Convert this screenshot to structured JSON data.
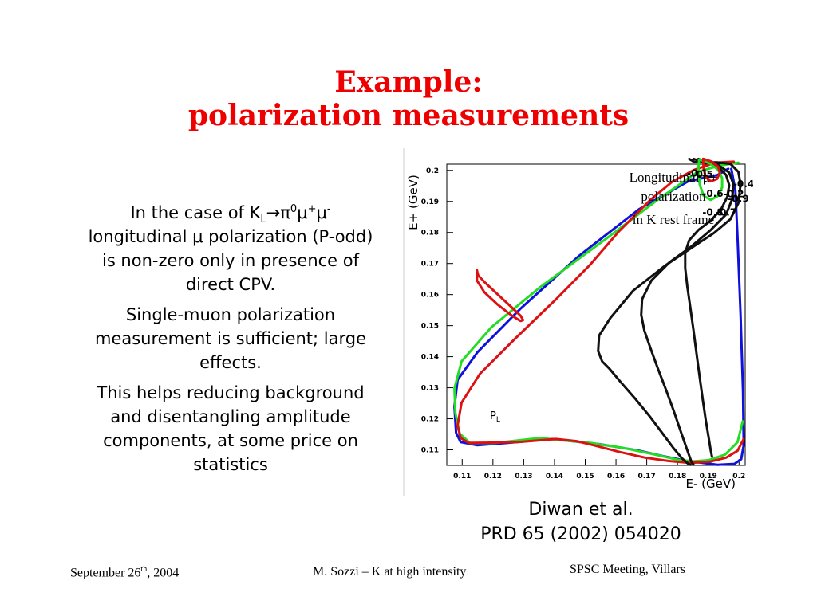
{
  "slide": {
    "title_line1": "Example:",
    "title_line2": "polarization measurements"
  },
  "body": {
    "p1_pre": "In the case of K",
    "p1_sub_L": "L",
    "p1_arrow_pi": "→π",
    "p1_sup_0": "0",
    "p1_mu1": "μ",
    "p1_sup_plus": "+",
    "p1_mu2": "μ",
    "p1_sup_minus": "-",
    "p1_rest": "longitudinal μ polarization (P-odd) is non-zero only in presence of direct CPV.",
    "p2": "Single-muon polarization measurement is sufficient; large effects.",
    "p3": "This helps reducing background and disentangling amplitude components, at some price on statistics"
  },
  "citation": {
    "line1": "Diwan et al.",
    "line2": "PRD 65 (2002) 054020"
  },
  "footer": {
    "date_pre": "September 26",
    "date_sup": "th",
    "date_post": ", 2004",
    "author": "M. Sozzi – K at high intensity",
    "meeting": "SPSC Meeting, Villars"
  },
  "chart_data": {
    "type": "contour",
    "title": "Longitudinal μ+ polarization in K rest frame",
    "annotation_lines": [
      "Longitudinal μ+",
      "polarization",
      "in K rest frame"
    ],
    "xlabel": "E- (GeV)",
    "ylabel": "E+ (GeV)",
    "inner_label_main": "P",
    "inner_label_sub": "L",
    "xlim": [
      0.105,
      0.202
    ],
    "ylim": [
      0.105,
      0.202
    ],
    "xticks": [
      0.11,
      0.12,
      0.13,
      0.14,
      0.15,
      0.16,
      0.17,
      0.18,
      0.19,
      0.2
    ],
    "xtick_labels": [
      "0.11",
      "0.12",
      "0.13",
      "0.14",
      "0.15",
      "0.16",
      "0.17",
      "0.18",
      "0.19",
      "0.2"
    ],
    "yticks": [
      0.11,
      0.12,
      0.13,
      0.14,
      0.15,
      0.16,
      0.17,
      0.18,
      0.19,
      0.2
    ],
    "ytick_labels": [
      "0.11",
      "0.12",
      "0.13",
      "0.14",
      "0.15",
      "0.16",
      "0.17",
      "0.18",
      "0.19",
      "0.2"
    ],
    "colors": {
      "blue": "#1010dd",
      "green": "#22dd22",
      "red": "#dd1111",
      "black": "#111111"
    },
    "contours": [
      {
        "label": "-0.1",
        "color": "blue",
        "label_at": [
          0.1865,
          0.198
        ],
        "points": [
          [
            0.1965,
            0.2005
          ],
          [
            0.193,
            0.1985
          ],
          [
            0.1835,
            0.1965
          ],
          [
            0.1675,
            0.1875
          ],
          [
            0.148,
            0.1725
          ],
          [
            0.129,
            0.1555
          ],
          [
            0.115,
            0.1415
          ],
          [
            0.1085,
            0.1325
          ],
          [
            0.1075,
            0.124
          ],
          [
            0.108,
            0.1155
          ],
          [
            0.1095,
            0.1125
          ],
          [
            0.1148,
            0.1115
          ],
          [
            0.1245,
            0.1122
          ],
          [
            0.1392,
            0.1135
          ],
          [
            0.1548,
            0.1118
          ],
          [
            0.1672,
            0.1098
          ],
          [
            0.1752,
            0.108
          ],
          [
            0.1832,
            0.1064
          ],
          [
            0.193,
            0.1052
          ],
          [
            0.1985,
            0.1055
          ],
          [
            0.2007,
            0.107
          ],
          [
            0.2015,
            0.1115
          ],
          [
            0.2013,
            0.1285
          ],
          [
            0.2005,
            0.1535
          ],
          [
            0.1995,
            0.1785
          ],
          [
            0.1988,
            0.1935
          ],
          [
            0.1975,
            0.2005
          ]
        ]
      },
      {
        "label": "-0.2",
        "color": "green",
        "label_at": [
          0.1982,
          0.1913
        ],
        "points": [
          [
            0.1998,
            0.2025
          ],
          [
            0.1935,
            0.2015
          ],
          [
            0.1865,
            0.1995
          ],
          [
            0.1735,
            0.1905
          ],
          [
            0.1575,
            0.1785
          ],
          [
            0.1355,
            0.1625
          ],
          [
            0.1195,
            0.1495
          ],
          [
            0.1098,
            0.1385
          ],
          [
            0.1075,
            0.1298
          ],
          [
            0.1078,
            0.1218
          ],
          [
            0.1092,
            0.1152
          ],
          [
            0.1125,
            0.1122
          ],
          [
            0.1205,
            0.1122
          ],
          [
            0.1352,
            0.1138
          ],
          [
            0.1518,
            0.1122
          ],
          [
            0.1625,
            0.1106
          ],
          [
            0.1722,
            0.1086
          ],
          [
            0.1802,
            0.1068
          ],
          [
            0.1852,
            0.1063
          ],
          [
            0.1902,
            0.1067
          ],
          [
            0.1955,
            0.1085
          ],
          [
            0.1995,
            0.1125
          ],
          [
            0.2012,
            0.1192
          ]
        ]
      },
      {
        "label": "-0.4",
        "color": "red",
        "label_at": [
          0.2015,
          0.1945
        ],
        "points": [
          [
            0.1983,
            0.2028
          ],
          [
            0.1922,
            0.2025
          ],
          [
            0.1855,
            0.2002
          ],
          [
            0.1785,
            0.1965
          ],
          [
            0.1712,
            0.1905
          ],
          [
            0.1608,
            0.1802
          ],
          [
            0.1515,
            0.1695
          ],
          [
            0.1405,
            0.1585
          ],
          [
            0.1272,
            0.1458
          ],
          [
            0.1158,
            0.1345
          ],
          [
            0.1098,
            0.1252
          ],
          [
            0.1085,
            0.1178
          ],
          [
            0.1095,
            0.1138
          ],
          [
            0.1122,
            0.1122
          ],
          [
            0.1175,
            0.1123
          ],
          [
            0.1282,
            0.1125
          ],
          [
            0.1405,
            0.1135
          ],
          [
            0.1472,
            0.1128
          ],
          [
            0.1538,
            0.1112
          ],
          [
            0.1612,
            0.1093
          ],
          [
            0.1695,
            0.1075
          ],
          [
            0.1772,
            0.1064
          ],
          [
            0.1842,
            0.1058
          ],
          [
            0.1905,
            0.1062
          ],
          [
            0.1958,
            0.1075
          ],
          [
            0.1995,
            0.1097
          ],
          [
            0.2015,
            0.1135
          ]
        ]
      },
      {
        "label": "-0.5",
        "color": "black",
        "label_at": [
          0.1882,
          0.1977
        ],
        "points": [
          [
            0.1838,
            0.2037
          ],
          [
            0.1855,
            0.2027
          ],
          [
            0.1928,
            0.2026
          ],
          [
            0.1972,
            0.2021
          ],
          [
            0.1998,
            0.1995
          ],
          [
            0.2005,
            0.1955
          ],
          [
            0.1998,
            0.1895
          ],
          [
            0.1972,
            0.1843
          ],
          [
            0.1918,
            0.1798
          ],
          [
            0.1848,
            0.1752
          ],
          [
            0.1758,
            0.1692
          ],
          [
            0.1655,
            0.1612
          ],
          [
            0.1582,
            0.1525
          ],
          [
            0.1545,
            0.1468
          ],
          [
            0.1542,
            0.1418
          ],
          [
            0.1555,
            0.1385
          ],
          [
            0.1578,
            0.1362
          ],
          [
            0.1618,
            0.1315
          ],
          [
            0.1665,
            0.1262
          ],
          [
            0.1712,
            0.1205
          ],
          [
            0.1752,
            0.1152
          ],
          [
            0.1785,
            0.1108
          ],
          [
            0.1815,
            0.1072
          ],
          [
            0.1835,
            0.1055
          ],
          [
            0.1842,
            0.1052
          ]
        ]
      },
      {
        "label": "-0.6",
        "color": "black",
        "label_at": [
          0.1915,
          0.1915
        ],
        "points": [
          [
            0.1852,
            0.2037
          ],
          [
            0.1892,
            0.2025
          ],
          [
            0.1935,
            0.2015
          ],
          [
            0.1968,
            0.1993
          ],
          [
            0.1982,
            0.1955
          ],
          [
            0.1978,
            0.1908
          ],
          [
            0.1958,
            0.1858
          ],
          [
            0.1908,
            0.1808
          ],
          [
            0.1845,
            0.1755
          ],
          [
            0.1775,
            0.1705
          ],
          [
            0.1715,
            0.1645
          ],
          [
            0.1685,
            0.1585
          ],
          [
            0.1682,
            0.1535
          ],
          [
            0.1692,
            0.1485
          ],
          [
            0.1712,
            0.1428
          ],
          [
            0.1735,
            0.1365
          ],
          [
            0.1762,
            0.1295
          ],
          [
            0.1788,
            0.1225
          ],
          [
            0.1812,
            0.1155
          ],
          [
            0.1832,
            0.1098
          ],
          [
            0.1845,
            0.1062
          ],
          [
            0.1852,
            0.1052
          ]
        ]
      },
      {
        "label": "-0.7",
        "color": "black",
        "label_at": [
          0.1958,
          0.1855
        ],
        "points": [
          [
            0.1868,
            0.2037
          ],
          [
            0.1902,
            0.2024
          ],
          [
            0.1935,
            0.2008
          ],
          [
            0.1958,
            0.1985
          ],
          [
            0.1968,
            0.1952
          ],
          [
            0.1962,
            0.1915
          ],
          [
            0.1942,
            0.1875
          ],
          [
            0.1908,
            0.1838
          ],
          [
            0.1868,
            0.1808
          ],
          [
            0.1838,
            0.1775
          ],
          [
            0.1825,
            0.1735
          ],
          [
            0.1825,
            0.1685
          ],
          [
            0.1832,
            0.1625
          ],
          [
            0.1842,
            0.1555
          ],
          [
            0.1852,
            0.1485
          ],
          [
            0.1862,
            0.1408
          ],
          [
            0.1872,
            0.1335
          ],
          [
            0.1882,
            0.1262
          ],
          [
            0.1892,
            0.1195
          ],
          [
            0.1902,
            0.1135
          ],
          [
            0.1908,
            0.1098
          ],
          [
            0.1912,
            0.1078
          ]
        ]
      },
      {
        "label": "-0.8",
        "color": "green",
        "label_at": [
          0.1915,
          0.1855
        ],
        "points": [
          [
            0.1872,
            0.2035
          ],
          [
            0.1905,
            0.2022
          ],
          [
            0.1932,
            0.2002
          ],
          [
            0.1945,
            0.1975
          ],
          [
            0.1945,
            0.1945
          ],
          [
            0.1932,
            0.1918
          ],
          [
            0.1908,
            0.1905
          ],
          [
            0.1885,
            0.1918
          ],
          [
            0.1872,
            0.1955
          ],
          [
            0.1868,
            0.2005
          ],
          [
            0.187,
            0.2035
          ]
        ]
      },
      {
        "label": "-0.9",
        "color": "red",
        "label_at": [
          0.1998,
          0.1898
        ],
        "points": [
          [
            0.1885,
            0.2037
          ],
          [
            0.1912,
            0.2028
          ],
          [
            0.1932,
            0.2012
          ],
          [
            0.1938,
            0.1992
          ],
          [
            0.1928,
            0.1972
          ],
          [
            0.1908,
            0.1965
          ],
          [
            0.1892,
            0.1978
          ],
          [
            0.1885,
            0.2005
          ],
          [
            0.1883,
            0.2037
          ]
        ]
      },
      {
        "label": "",
        "color": "red",
        "label_at": null,
        "points": [
          [
            0.1148,
            0.1678
          ],
          [
            0.1152,
            0.1662
          ],
          [
            0.1175,
            0.1638
          ],
          [
            0.1218,
            0.1598
          ],
          [
            0.1262,
            0.1558
          ],
          [
            0.129,
            0.1532
          ],
          [
            0.1298,
            0.1518
          ],
          [
            0.129,
            0.1515
          ],
          [
            0.1262,
            0.1532
          ],
          [
            0.1215,
            0.1568
          ],
          [
            0.1172,
            0.1608
          ],
          [
            0.1148,
            0.1645
          ],
          [
            0.1148,
            0.1678
          ]
        ]
      }
    ]
  }
}
